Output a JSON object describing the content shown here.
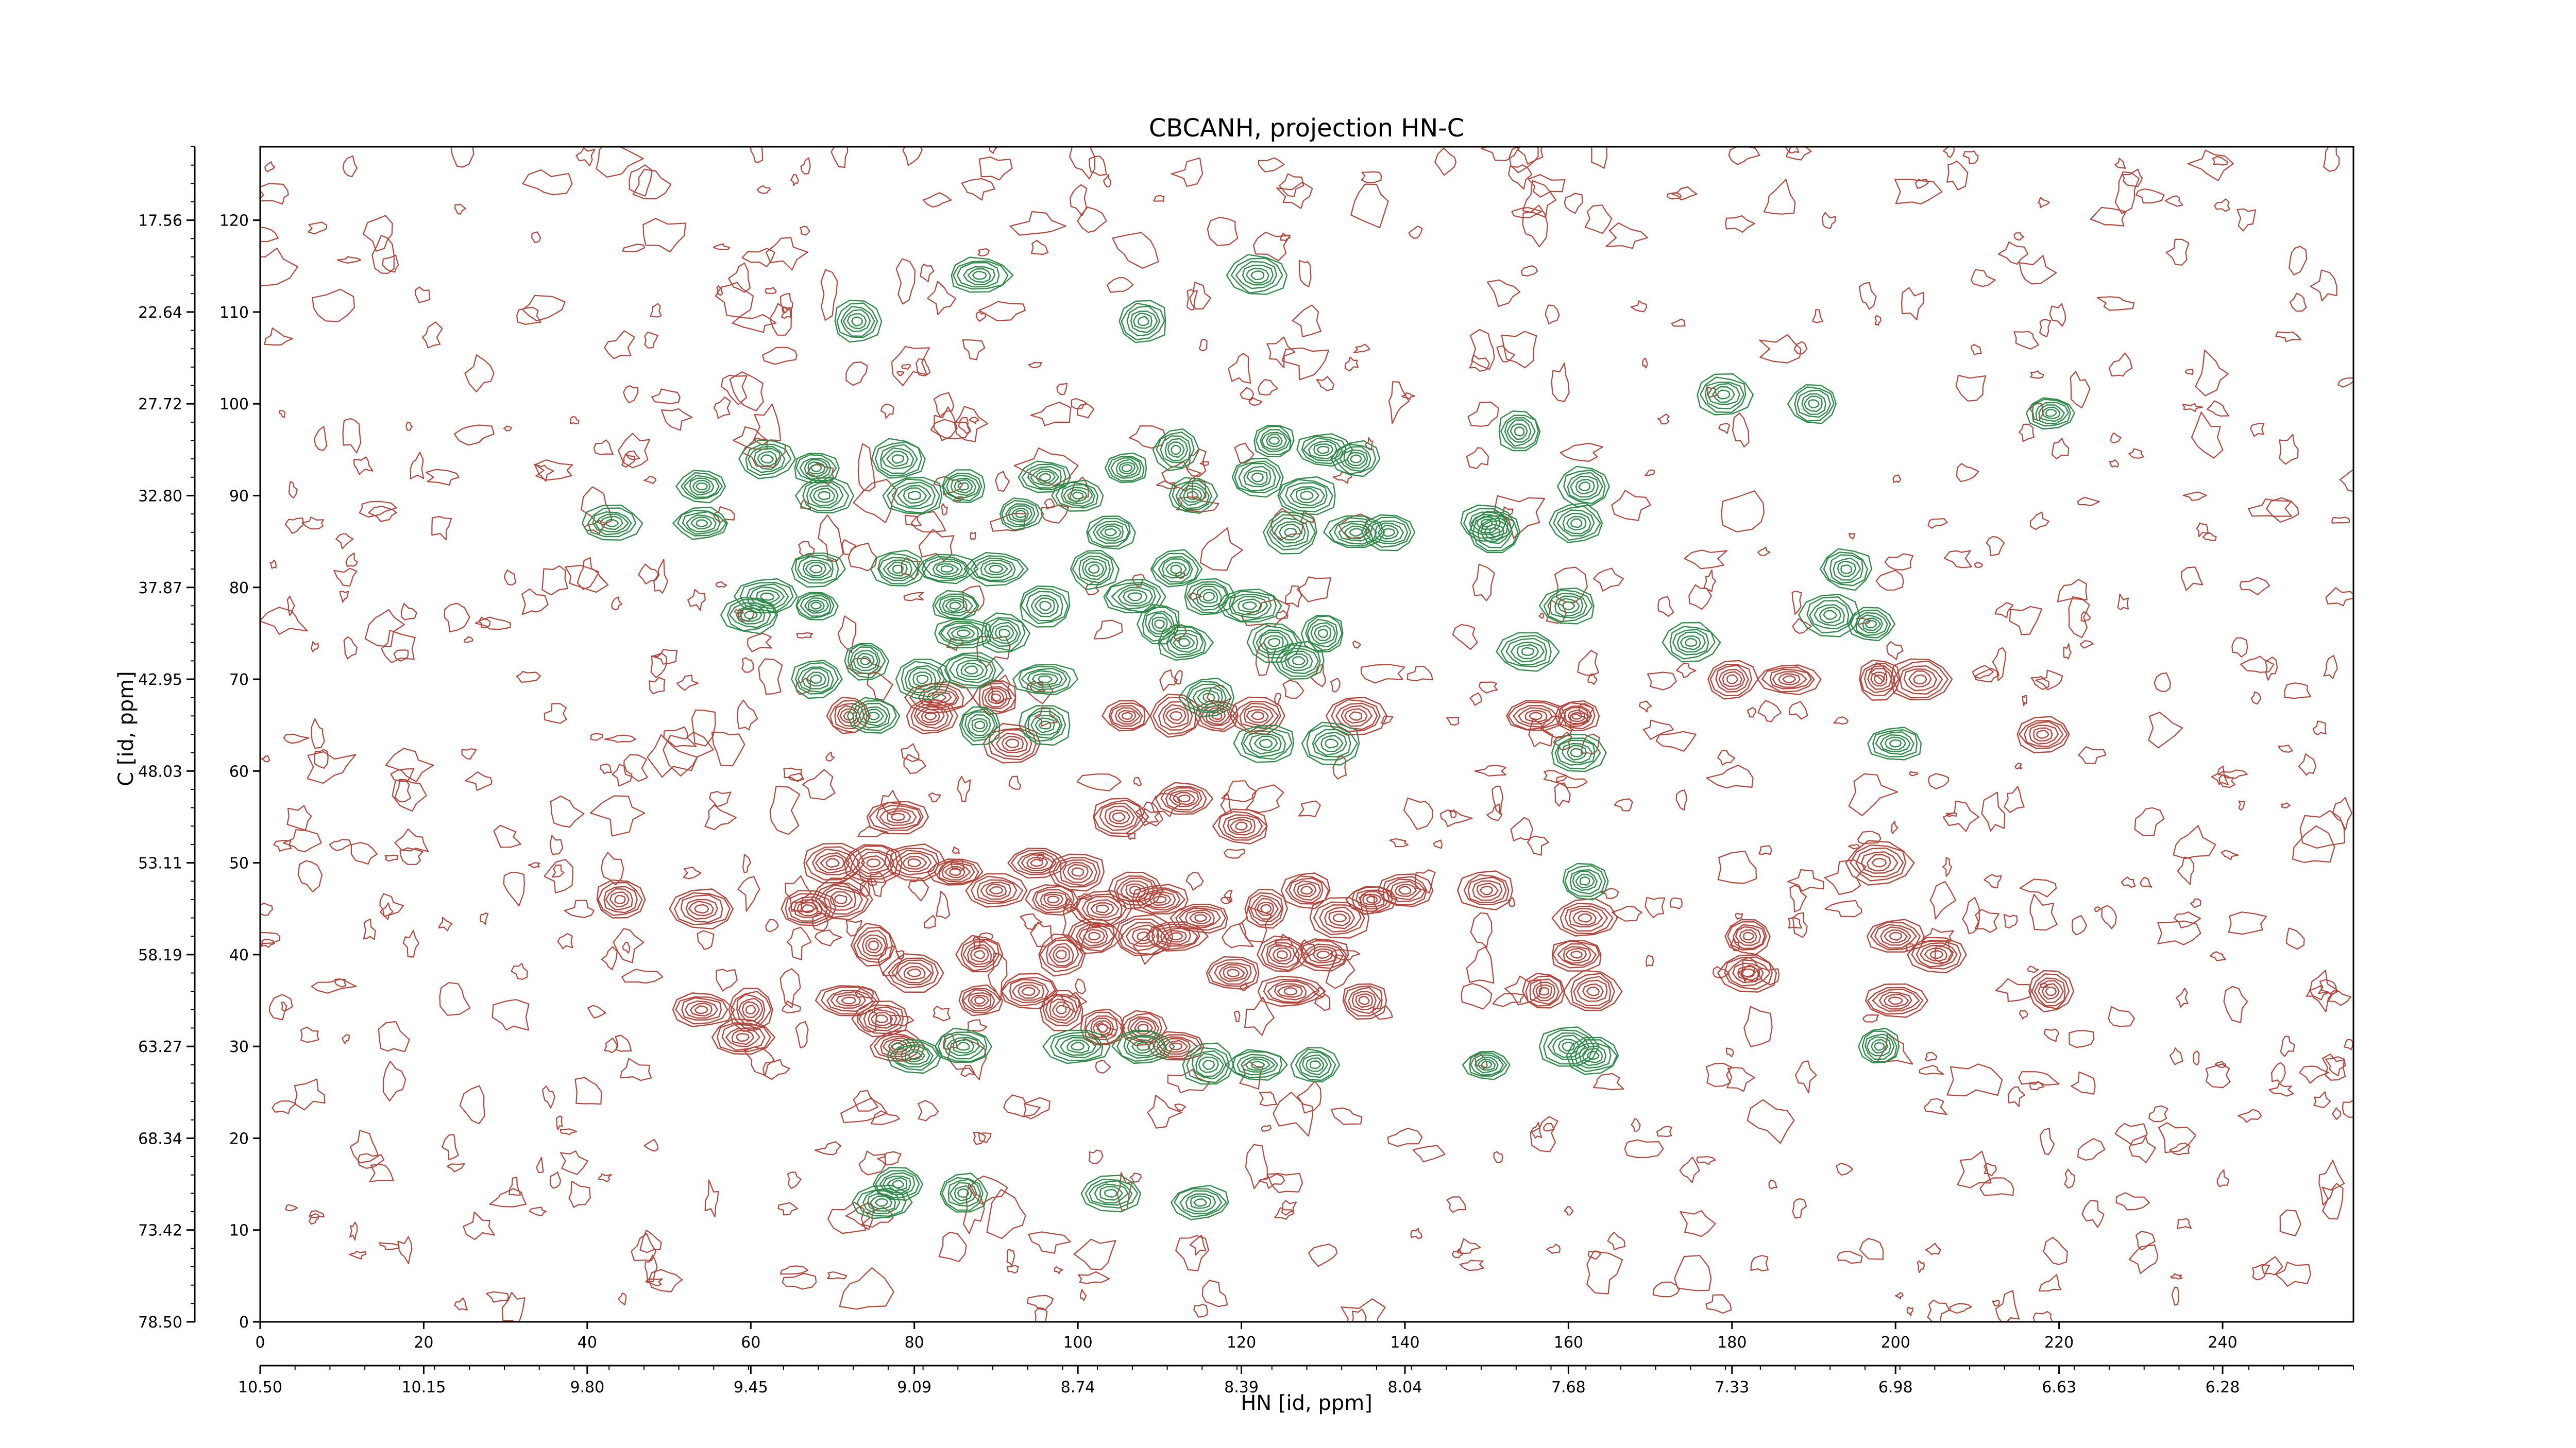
{
  "chart_data": {
    "type": "contour",
    "title": "CBCANH, projection HN-C",
    "xlabel": "HN [id, ppm]",
    "ylabel": "C [id, ppm]",
    "xlim": [
      0,
      256
    ],
    "ylim": [
      0,
      128
    ],
    "x_ticks": [
      "0",
      "20",
      "40",
      "60",
      "80",
      "100",
      "120",
      "140",
      "160",
      "180",
      "200",
      "220",
      "240"
    ],
    "y_ticks": [
      "0",
      "10",
      "20",
      "30",
      "40",
      "50",
      "60",
      "70",
      "80",
      "90",
      "100",
      "110",
      "120"
    ],
    "x_ppm_ticks": [
      "10.50",
      "10.15",
      "9.80",
      "9.45",
      "9.09",
      "8.74",
      "8.39",
      "8.04",
      "7.68",
      "7.33",
      "6.98",
      "6.63",
      "6.28"
    ],
    "y_ppm_ticks": [
      "78.50",
      "73.42",
      "68.34",
      "63.27",
      "58.19",
      "53.11",
      "48.03",
      "42.95",
      "37.87",
      "32.80",
      "27.72",
      "22.64",
      "17.56"
    ],
    "colors": {
      "positive": "#b5453a",
      "negative": "#2e8b4a",
      "frame": "#000000"
    },
    "series": [
      {
        "name": "positive",
        "peaks": [
          [
            44,
            46
          ],
          [
            54,
            45
          ],
          [
            54,
            34
          ],
          [
            60,
            34
          ],
          [
            59,
            31
          ],
          [
            67,
            45
          ],
          [
            71,
            46
          ],
          [
            70,
            50
          ],
          [
            75,
            50
          ],
          [
            80,
            50
          ],
          [
            85,
            49
          ],
          [
            75,
            41
          ],
          [
            80,
            38
          ],
          [
            88,
            40
          ],
          [
            90,
            47
          ],
          [
            95,
            50
          ],
          [
            97,
            46
          ],
          [
            100,
            49
          ],
          [
            103,
            45
          ],
          [
            107,
            47
          ],
          [
            110,
            46
          ],
          [
            98,
            40
          ],
          [
            102,
            42
          ],
          [
            108,
            42
          ],
          [
            112,
            42
          ],
          [
            115,
            44
          ],
          [
            94,
            36
          ],
          [
            98,
            34
          ],
          [
            103,
            32
          ],
          [
            108,
            32
          ],
          [
            112,
            30
          ],
          [
            119,
            38
          ],
          [
            123,
            45
          ],
          [
            128,
            47
          ],
          [
            132,
            44
          ],
          [
            136,
            46
          ],
          [
            140,
            47
          ],
          [
            125,
            40
          ],
          [
            130,
            40
          ],
          [
            135,
            35
          ],
          [
            126,
            36
          ],
          [
            78,
            30
          ],
          [
            88,
            35
          ],
          [
            76,
            33
          ],
          [
            72,
            35
          ],
          [
            72,
            66
          ],
          [
            82,
            66
          ],
          [
            83,
            68
          ],
          [
            90,
            68
          ],
          [
            92,
            63
          ],
          [
            106,
            66
          ],
          [
            112,
            66
          ],
          [
            117,
            66
          ],
          [
            122,
            66
          ],
          [
            134,
            66
          ],
          [
            150,
            47
          ],
          [
            156,
            66
          ],
          [
            161,
            66
          ],
          [
            162,
            44
          ],
          [
            161,
            40
          ],
          [
            157,
            36
          ],
          [
            163,
            36
          ],
          [
            180,
            70
          ],
          [
            187,
            70
          ],
          [
            198,
            70
          ],
          [
            203,
            70
          ],
          [
            218,
            64
          ],
          [
            182,
            42
          ],
          [
            182,
            38
          ],
          [
            200,
            42
          ],
          [
            205,
            40
          ],
          [
            198,
            50
          ],
          [
            200,
            35
          ],
          [
            219,
            36
          ],
          [
            78,
            55
          ],
          [
            105,
            55
          ],
          [
            113,
            57
          ],
          [
            120,
            54
          ]
        ]
      },
      {
        "name": "negative",
        "peaks": [
          [
            88,
            114
          ],
          [
            122,
            114
          ],
          [
            73,
            109
          ],
          [
            108,
            109
          ],
          [
            190,
            100
          ],
          [
            179,
            101
          ],
          [
            219,
            99
          ],
          [
            154,
            97
          ],
          [
            43,
            87
          ],
          [
            54,
            91
          ],
          [
            54,
            87
          ],
          [
            62,
            94
          ],
          [
            68,
            93
          ],
          [
            69,
            90
          ],
          [
            78,
            94
          ],
          [
            80,
            90
          ],
          [
            86,
            91
          ],
          [
            96,
            92
          ],
          [
            93,
            88
          ],
          [
            100,
            90
          ],
          [
            104,
            86
          ],
          [
            106,
            93
          ],
          [
            112,
            95
          ],
          [
            114,
            90
          ],
          [
            122,
            92
          ],
          [
            124,
            96
          ],
          [
            128,
            90
          ],
          [
            130,
            95
          ],
          [
            134,
            94
          ],
          [
            126,
            86
          ],
          [
            134,
            86
          ],
          [
            138,
            86
          ],
          [
            150,
            87
          ],
          [
            161,
            87
          ],
          [
            162,
            91
          ],
          [
            62,
            79
          ],
          [
            60,
            77
          ],
          [
            68,
            82
          ],
          [
            68,
            78
          ],
          [
            78,
            82
          ],
          [
            84,
            82
          ],
          [
            85,
            78
          ],
          [
            90,
            82
          ],
          [
            96,
            78
          ],
          [
            102,
            82
          ],
          [
            107,
            79
          ],
          [
            112,
            82
          ],
          [
            116,
            79
          ],
          [
            121,
            78
          ],
          [
            113,
            74
          ],
          [
            86,
            75
          ],
          [
            91,
            75
          ],
          [
            124,
            74
          ],
          [
            127,
            72
          ],
          [
            130,
            75
          ],
          [
            110,
            76
          ],
          [
            160,
            78
          ],
          [
            155,
            73
          ],
          [
            175,
            74
          ],
          [
            194,
            82
          ],
          [
            192,
            77
          ],
          [
            197,
            76
          ],
          [
            68,
            70
          ],
          [
            74,
            72
          ],
          [
            81,
            70
          ],
          [
            87,
            71
          ],
          [
            96,
            70
          ],
          [
            75,
            66
          ],
          [
            88,
            65
          ],
          [
            96,
            65
          ],
          [
            151,
            86
          ],
          [
            161,
            62
          ],
          [
            200,
            63
          ],
          [
            150,
            28
          ],
          [
            78,
            15
          ],
          [
            86,
            14
          ],
          [
            104,
            14
          ],
          [
            115,
            13
          ],
          [
            76,
            13
          ],
          [
            80,
            29
          ],
          [
            86,
            30
          ],
          [
            100,
            30
          ],
          [
            108,
            30
          ],
          [
            116,
            28
          ],
          [
            122,
            28
          ],
          [
            129,
            28
          ],
          [
            160,
            30
          ],
          [
            163,
            29
          ],
          [
            162,
            48
          ],
          [
            198,
            30
          ],
          [
            116,
            68
          ],
          [
            123,
            63
          ],
          [
            131,
            63
          ]
        ]
      }
    ]
  }
}
